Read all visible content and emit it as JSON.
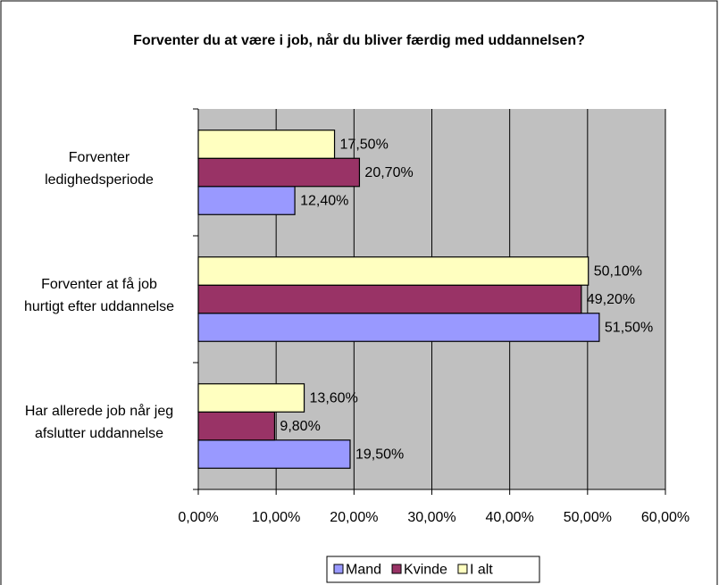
{
  "chart_data": {
    "type": "barh",
    "title": "Forventer du at være i job, når du bliver færdig med uddannelsen?",
    "categories": [
      "Forventer ledighedsperiode",
      "Forventer at få job hurtigt efter uddannelse",
      "Har allerede job når jeg afslutter uddannelse"
    ],
    "series": [
      {
        "name": "Mand",
        "color": "#9999ff",
        "values": [
          12.4,
          51.5,
          19.5
        ],
        "value_labels": [
          "12,40%",
          "51,50%",
          "19,50%"
        ]
      },
      {
        "name": "Kvinde",
        "color": "#993366",
        "values": [
          20.7,
          49.2,
          9.8
        ],
        "value_labels": [
          "20,70%",
          "49,20%",
          "9,80%"
        ]
      },
      {
        "name": "I alt",
        "color": "#ffffc0",
        "values": [
          17.5,
          50.1,
          13.6
        ],
        "value_labels": [
          "17,50%",
          "50,10%",
          "13,60%"
        ]
      }
    ],
    "xlim": [
      0,
      60
    ],
    "xticks": [
      {
        "value": 0,
        "label": "0,00%"
      },
      {
        "value": 10,
        "label": "10,00%"
      },
      {
        "value": 20,
        "label": "20,00%"
      },
      {
        "value": 30,
        "label": "30,00%"
      },
      {
        "value": 40,
        "label": "40,00%"
      },
      {
        "value": 50,
        "label": "50,00%"
      },
      {
        "value": 60,
        "label": "60,00%"
      }
    ],
    "grid": true,
    "legend": "bottom"
  }
}
